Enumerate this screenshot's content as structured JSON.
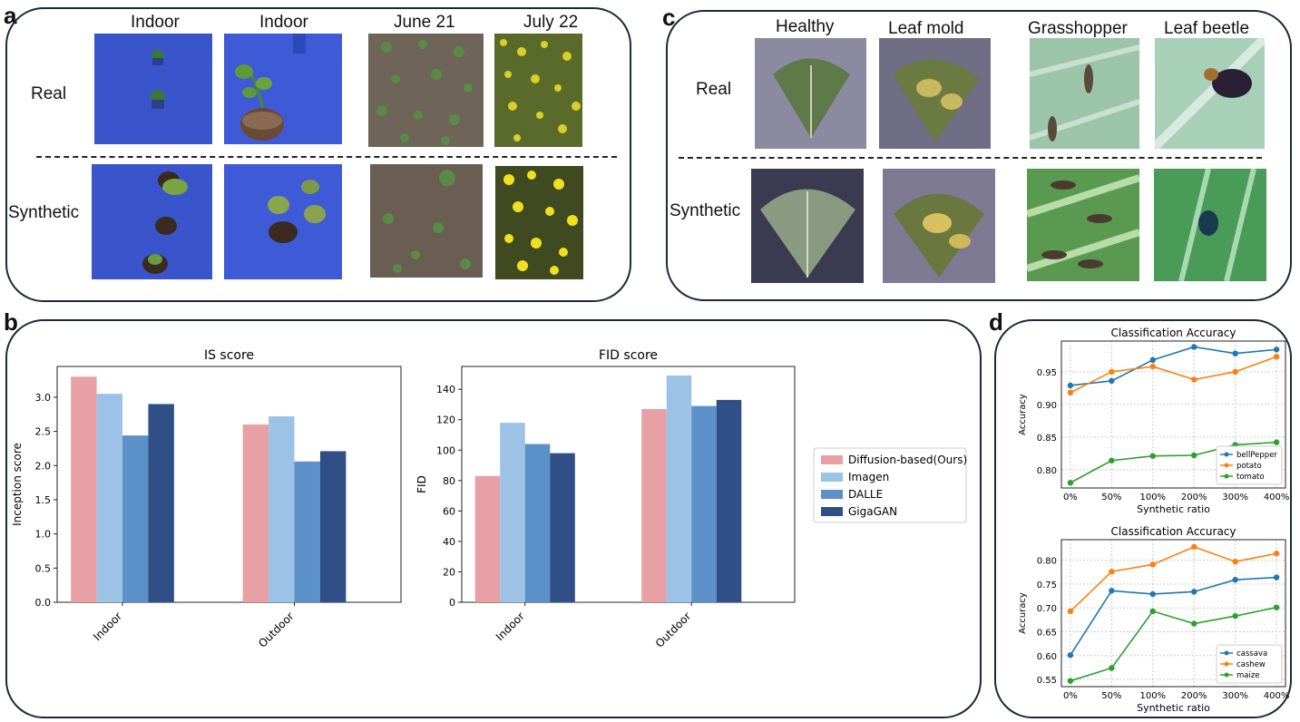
{
  "panels": {
    "a": {
      "letter": "a",
      "col_headers": [
        "Indoor",
        "Indoor",
        "June 21",
        "July 22"
      ],
      "row_labels": [
        "Real",
        "Synthetic"
      ]
    },
    "c": {
      "letter": "c",
      "col_headers": [
        "Healthy",
        "Leaf mold",
        "Grasshopper",
        "Leaf beetle"
      ],
      "row_labels": [
        "Real",
        "Synthetic"
      ]
    },
    "b": {
      "letter": "b"
    },
    "d": {
      "letter": "d"
    }
  },
  "colors": {
    "diffusion": "#e8a0a4",
    "imagen": "#9cc3e6",
    "dalle": "#5b90c8",
    "gigagan": "#2f4f86",
    "blue": "#1f77b4",
    "orange": "#ff7f0e",
    "green": "#2ca02c",
    "panel_border": "#1a2a3a"
  },
  "chart_data": [
    {
      "type": "bar",
      "title": "IS score",
      "xlabel": "",
      "ylabel": "Inception score",
      "categories": [
        "Indoor",
        "Outdoor"
      ],
      "ylim": [
        0,
        3.45
      ],
      "yticks": [
        "0.0",
        "0.5",
        "1.0",
        "1.5",
        "2.0",
        "2.5",
        "3.0"
      ],
      "series": [
        {
          "name": "Diffusion-based(Ours)",
          "values": [
            3.3,
            2.6
          ]
        },
        {
          "name": "Imagen",
          "values": [
            3.05,
            2.72
          ]
        },
        {
          "name": "DALLE",
          "values": [
            2.44,
            2.06
          ]
        },
        {
          "name": "GigaGAN",
          "values": [
            2.9,
            2.21
          ]
        }
      ]
    },
    {
      "type": "bar",
      "title": "FID score",
      "xlabel": "",
      "ylabel": "FID",
      "categories": [
        "Indoor",
        "Outdoor"
      ],
      "ylim": [
        0,
        155
      ],
      "yticks": [
        "0",
        "20",
        "40",
        "60",
        "80",
        "100",
        "120",
        "140"
      ],
      "series": [
        {
          "name": "Diffusion-based(Ours)",
          "values": [
            83,
            127
          ]
        },
        {
          "name": "Imagen",
          "values": [
            118,
            149
          ]
        },
        {
          "name": "DALLE",
          "values": [
            104,
            129
          ]
        },
        {
          "name": "GigaGAN",
          "values": [
            98,
            133
          ]
        }
      ],
      "legend": [
        "Diffusion-based(Ours)",
        "Imagen",
        "DALLE",
        "GigaGAN"
      ]
    },
    {
      "type": "line",
      "title": "Classification Accuracy",
      "xlabel": "Synthetic ratio",
      "ylabel": "Accuracy",
      "x": [
        "0%",
        "50%",
        "100%",
        "200%",
        "300%",
        "400%"
      ],
      "ylim": [
        0.772,
        0.997
      ],
      "yticks": [
        "0.80",
        "0.85",
        "0.90",
        "0.95"
      ],
      "legend_position": "lower-right",
      "series": [
        {
          "name": "bellPepper",
          "values": [
            0.929,
            0.936,
            0.968,
            0.988,
            0.978,
            0.984
          ]
        },
        {
          "name": "potato",
          "values": [
            0.918,
            0.95,
            0.958,
            0.938,
            0.95,
            0.973
          ]
        },
        {
          "name": "tomato",
          "values": [
            0.78,
            0.814,
            0.821,
            0.822,
            0.838,
            0.842
          ]
        }
      ]
    },
    {
      "type": "line",
      "title": "Classification Accuracy",
      "xlabel": "Synthetic ratio",
      "ylabel": "Accuracy",
      "x": [
        "0%",
        "50%",
        "100%",
        "200%",
        "300%",
        "400%"
      ],
      "ylim": [
        0.535,
        0.843
      ],
      "yticks": [
        "0.55",
        "0.60",
        "0.65",
        "0.70",
        "0.75",
        "0.80"
      ],
      "legend_position": "lower-right",
      "series": [
        {
          "name": "cassava",
          "values": [
            0.601,
            0.736,
            0.729,
            0.734,
            0.759,
            0.764
          ]
        },
        {
          "name": "cashew",
          "values": [
            0.693,
            0.776,
            0.791,
            0.828,
            0.797,
            0.814
          ]
        },
        {
          "name": "maize",
          "values": [
            0.547,
            0.574,
            0.693,
            0.667,
            0.683,
            0.701
          ]
        }
      ]
    }
  ]
}
